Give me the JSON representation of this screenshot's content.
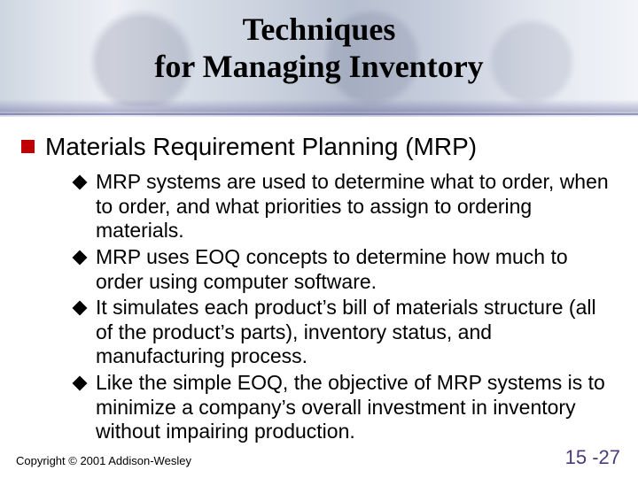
{
  "title_line1": "Techniques",
  "title_line2": "for Managing Inventory",
  "main_heading": "Materials Requirement Planning (MRP)",
  "sub_points": [
    "MRP systems are used to determine what to order, when to order, and what priorities to assign to ordering materials.",
    "MRP uses EOQ concepts to determine how much to order using computer software.",
    "It simulates each product’s bill of materials structure (all of the product’s parts), inventory status, and manufacturing process.",
    "Like the simple EOQ, the objective of MRP systems is to minimize a company’s overall investment in inventory without impairing production."
  ],
  "copyright": "Copyright © 2001 Addison-Wesley",
  "page_number": "15 -27",
  "colors": {
    "accent_bullet": "#c00000",
    "sub_bullet": "#000000",
    "pagenum": "#4b3a7c"
  },
  "typography": {
    "title_font": "Times New Roman",
    "title_size_pt": 36,
    "body_font": "Arial",
    "main_size_pt": 28,
    "sub_size_pt": 23
  }
}
